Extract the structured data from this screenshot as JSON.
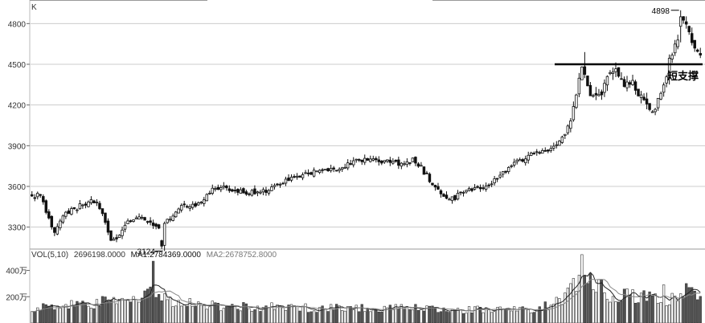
{
  "chart_data": {
    "type": "candlestick",
    "panel_label": "K",
    "price": {
      "ylim": [
        3150,
        4950
      ],
      "ticks": [
        3300,
        3600,
        3900,
        4200,
        4500,
        4800
      ],
      "annotations": {
        "low_label": "3124",
        "low_value": 3124,
        "high_label": "4898",
        "high_value": 4898,
        "support_label": "短支撑",
        "support_value": 4500
      },
      "waypoints": [
        [
          0,
          3520
        ],
        [
          12,
          3540
        ],
        [
          18,
          3420
        ],
        [
          28,
          3240
        ],
        [
          42,
          3400
        ],
        [
          55,
          3440
        ],
        [
          72,
          3470
        ],
        [
          84,
          3500
        ],
        [
          92,
          3400
        ],
        [
          100,
          3230
        ],
        [
          108,
          3190
        ],
        [
          118,
          3290
        ],
        [
          130,
          3360
        ],
        [
          145,
          3370
        ],
        [
          160,
          3290
        ],
        [
          178,
          3350
        ],
        [
          195,
          3450
        ],
        [
          215,
          3450
        ],
        [
          235,
          3570
        ],
        [
          255,
          3590
        ],
        [
          275,
          3560
        ],
        [
          290,
          3560
        ],
        [
          305,
          3570
        ],
        [
          320,
          3610
        ],
        [
          340,
          3680
        ],
        [
          355,
          3690
        ],
        [
          370,
          3710
        ],
        [
          385,
          3730
        ],
        [
          398,
          3720
        ],
        [
          410,
          3760
        ],
        [
          425,
          3790
        ],
        [
          440,
          3810
        ],
        [
          455,
          3790
        ],
        [
          470,
          3770
        ],
        [
          485,
          3750
        ],
        [
          498,
          3800
        ],
        [
          510,
          3710
        ],
        [
          522,
          3620
        ],
        [
          535,
          3530
        ],
        [
          550,
          3510
        ],
        [
          565,
          3580
        ],
        [
          578,
          3590
        ],
        [
          592,
          3600
        ],
        [
          605,
          3650
        ],
        [
          618,
          3720
        ],
        [
          630,
          3780
        ],
        [
          645,
          3820
        ],
        [
          660,
          3850
        ],
        [
          672,
          3880
        ],
        [
          684,
          3890
        ],
        [
          694,
          4000
        ],
        [
          702,
          4120
        ],
        [
          710,
          4320
        ],
        [
          716,
          4480
        ],
        [
          722,
          4380
        ],
        [
          730,
          4250
        ],
        [
          742,
          4300
        ],
        [
          752,
          4460
        ],
        [
          760,
          4440
        ],
        [
          770,
          4360
        ],
        [
          782,
          4350
        ],
        [
          795,
          4240
        ],
        [
          805,
          4140
        ],
        [
          815,
          4240
        ],
        [
          825,
          4390
        ],
        [
          832,
          4580
        ],
        [
          840,
          4650
        ],
        [
          848,
          4840
        ],
        [
          855,
          4760
        ],
        [
          862,
          4640
        ],
        [
          870,
          4580
        ]
      ]
    },
    "volume": {
      "legend_prefix": "VOL(5,10)",
      "legend_vol": "2696198.0000",
      "legend_ma1": "MA1:2784369.0000",
      "legend_ma2": "MA2:2678752.8000",
      "unit": "万",
      "ylim": [
        0,
        550
      ],
      "ticks": [
        200,
        400
      ],
      "tick_labels": [
        "200万",
        "400万"
      ],
      "waypoints": [
        [
          0,
          110
        ],
        [
          40,
          125
        ],
        [
          80,
          150
        ],
        [
          120,
          170
        ],
        [
          150,
          230
        ],
        [
          160,
          190
        ],
        [
          175,
          185
        ],
        [
          200,
          160
        ],
        [
          240,
          130
        ],
        [
          300,
          120
        ],
        [
          360,
          115
        ],
        [
          400,
          120
        ],
        [
          460,
          110
        ],
        [
          520,
          110
        ],
        [
          560,
          100
        ],
        [
          620,
          100
        ],
        [
          660,
          110
        ],
        [
          685,
          170
        ],
        [
          700,
          260
        ],
        [
          715,
          300
        ],
        [
          730,
          270
        ],
        [
          745,
          230
        ],
        [
          770,
          200
        ],
        [
          800,
          200
        ],
        [
          820,
          150
        ],
        [
          835,
          210
        ],
        [
          855,
          260
        ],
        [
          870,
          250
        ]
      ],
      "spikes": [
        [
          157,
          470
        ],
        [
          700,
          300
        ],
        [
          716,
          520
        ],
        [
          728,
          380
        ],
        [
          740,
          330
        ],
        [
          822,
          290
        ],
        [
          851,
          300
        ],
        [
          857,
          270
        ]
      ]
    },
    "colors": {
      "candle": "#111111",
      "grid": "#cccccc",
      "ma1": "#222222",
      "ma2": "#888888",
      "axis_text": "#333333"
    }
  }
}
